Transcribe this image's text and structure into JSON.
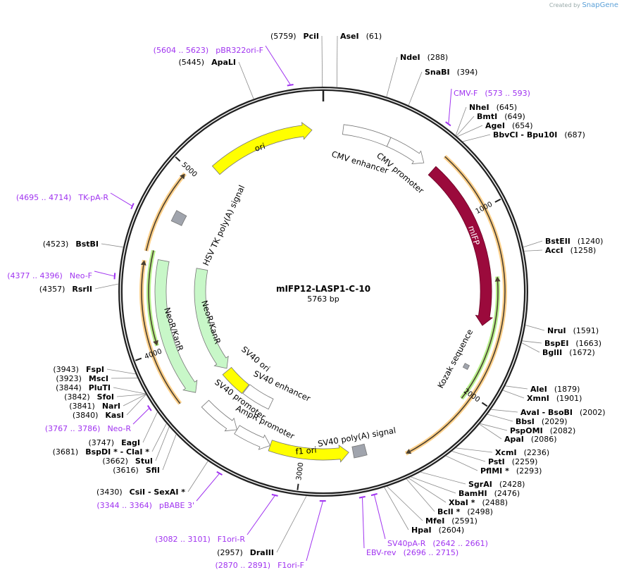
{
  "credit": {
    "prefix": "Created by",
    "brand": "SnapGene"
  },
  "plasmid": {
    "name": "mIFP12-LASP1-C-10",
    "length_label": "5763 bp",
    "length": 5763
  },
  "ticks": [
    "1000",
    "2000",
    "3000",
    "4000",
    "5000"
  ],
  "colors": {
    "backbone": "#222222",
    "primer": "#a033f0",
    "ori": "#ffff00",
    "promoter": "#ffffff",
    "mIFP": "#9b0a3c",
    "neo": "#c8f7c8",
    "signal": "#a0a4ad",
    "orange": "#ffd08a",
    "green": "#b6f08a"
  },
  "features": [
    {
      "label": "ori",
      "start": 5099,
      "end": 5699,
      "dir": 1,
      "type": "ori"
    },
    {
      "label": "CMV enhancer",
      "start": 112,
      "end": 379,
      "dir": 0,
      "type": "promoter"
    },
    {
      "label": "CMV promoter",
      "start": 379,
      "end": 608,
      "dir": 1,
      "type": "promoter"
    },
    {
      "label": "mIFP",
      "start": 672,
      "end": 1633,
      "dir": 1,
      "type": "mIFP"
    },
    {
      "label": "Kozak sequence",
      "start": 1870,
      "end": 1895,
      "dir": 0,
      "type": "signal"
    },
    {
      "label": "HSV TK poly(A) signal",
      "start": 4722,
      "end": 4786,
      "dir": 0,
      "type": "signal"
    },
    {
      "label": "NeoR/KanR",
      "start": 3709,
      "end": 4498,
      "dir": -1,
      "type": "neo"
    },
    {
      "label": "NeoR/KanR",
      "start": 3706,
      "end": 4490,
      "dir": -1,
      "type": "neo"
    },
    {
      "label": "SV40 ori",
      "start": 3500,
      "end": 3690,
      "dir": 0,
      "type": "ori"
    },
    {
      "label": "SV40 enhancer",
      "start": 3282,
      "end": 3495,
      "dir": 0,
      "type": "promoter"
    },
    {
      "label": "SV40 promoter",
      "start": 3394,
      "end": 3626,
      "dir": -1,
      "type": "promoter"
    },
    {
      "label": "AmpR promoter",
      "start": 3186,
      "end": 3394,
      "dir": -1,
      "type": "promoter"
    },
    {
      "label": "f1 ori",
      "start": 2737,
      "end": 3186,
      "dir": -1,
      "type": "ori"
    },
    {
      "label": "SV40 poly(A) signal",
      "start": 2641,
      "end": 2713,
      "dir": 0,
      "type": "signal"
    }
  ],
  "orfs": [
    {
      "start": 672,
      "end": 2449,
      "dir": 1,
      "type": "orange"
    },
    {
      "start": 1361,
      "end": 2043,
      "dir": -1,
      "type": "green"
    },
    {
      "start": 4530,
      "end": 4970,
      "dir": 1,
      "type": "orange"
    },
    {
      "start": 3714,
      "end": 4482,
      "dir": 1,
      "type": "orange"
    },
    {
      "start": 4034,
      "end": 4541,
      "dir": -1,
      "type": "green"
    }
  ],
  "enzymes": [
    {
      "name": "AseI",
      "pos": "(61)",
      "bp": 61,
      "side": "right"
    },
    {
      "name": "NdeI",
      "pos": "(288)",
      "bp": 288,
      "side": "right"
    },
    {
      "name": "SnaBI",
      "pos": "(394)",
      "bp": 394,
      "side": "right"
    },
    {
      "name": "NheI",
      "pos": "(645)",
      "bp": 645,
      "side": "right"
    },
    {
      "name": "BmtI",
      "pos": "(649)",
      "bp": 649,
      "side": "right"
    },
    {
      "name": "AgeI",
      "pos": "(654)",
      "bp": 654,
      "side": "right"
    },
    {
      "name": "BbvCI  - Bpu10I",
      "pos": "(687)",
      "bp": 687,
      "side": "right"
    },
    {
      "name": "BstEII",
      "pos": "(1240)",
      "bp": 1240,
      "side": "right"
    },
    {
      "name": "AccI",
      "pos": "(1258)",
      "bp": 1258,
      "side": "right"
    },
    {
      "name": "NruI",
      "pos": "(1591)",
      "bp": 1591,
      "side": "right"
    },
    {
      "name": "BspEI",
      "pos": "(1663)",
      "bp": 1663,
      "side": "right"
    },
    {
      "name": "BglII",
      "pos": "(1672)",
      "bp": 1672,
      "side": "right"
    },
    {
      "name": "AleI",
      "pos": "(1879)",
      "bp": 1879,
      "side": "right"
    },
    {
      "name": "XmnI",
      "pos": "(1901)",
      "bp": 1901,
      "side": "right"
    },
    {
      "name": "AvaI  - BsoBI",
      "pos": "(2002)",
      "bp": 2002,
      "side": "right"
    },
    {
      "name": "BbsI",
      "pos": "(2029)",
      "bp": 2029,
      "side": "right"
    },
    {
      "name": "PspOMI",
      "pos": "(2082)",
      "bp": 2082,
      "side": "right"
    },
    {
      "name": "ApaI",
      "pos": "(2086)",
      "bp": 2086,
      "side": "right"
    },
    {
      "name": "XcmI",
      "pos": "(2236)",
      "bp": 2236,
      "side": "right"
    },
    {
      "name": "PstI",
      "pos": "(2259)",
      "bp": 2259,
      "side": "right"
    },
    {
      "name": "PflMI *",
      "pos": "(2293)",
      "bp": 2293,
      "side": "right"
    },
    {
      "name": "SgrAI",
      "pos": "(2428)",
      "bp": 2428,
      "side": "right"
    },
    {
      "name": "BamHI",
      "pos": "(2476)",
      "bp": 2476,
      "side": "right"
    },
    {
      "name": "XbaI *",
      "pos": "(2488)",
      "bp": 2488,
      "side": "right"
    },
    {
      "name": "BclI *",
      "pos": "(2498)",
      "bp": 2498,
      "side": "right"
    },
    {
      "name": "MfeI",
      "pos": "(2591)",
      "bp": 2591,
      "side": "right"
    },
    {
      "name": "HpaI",
      "pos": "(2604)",
      "bp": 2604,
      "side": "right"
    },
    {
      "name": "PciI",
      "pos": "(5759)",
      "bp": 5759,
      "side": "left"
    },
    {
      "name": "ApaLI",
      "pos": "(5445)",
      "bp": 5445,
      "side": "left"
    },
    {
      "name": "BstBI",
      "pos": "(4523)",
      "bp": 4523,
      "side": "left"
    },
    {
      "name": "RsrII",
      "pos": "(4357)",
      "bp": 4357,
      "side": "left"
    },
    {
      "name": "FspI",
      "pos": "(3943)",
      "bp": 3943,
      "side": "left"
    },
    {
      "name": "MscI",
      "pos": "(3923)",
      "bp": 3923,
      "side": "left"
    },
    {
      "name": "PluTI",
      "pos": "(3844)",
      "bp": 3844,
      "side": "left"
    },
    {
      "name": "SfoI",
      "pos": "(3842)",
      "bp": 3842,
      "side": "left"
    },
    {
      "name": "NarI",
      "pos": "(3841)",
      "bp": 3841,
      "side": "left"
    },
    {
      "name": "KasI",
      "pos": "(3840)",
      "bp": 3840,
      "side": "left"
    },
    {
      "name": "EagI",
      "pos": "(3747)",
      "bp": 3747,
      "side": "left"
    },
    {
      "name": "BspDI *  - ClaI *",
      "pos": "(3681)",
      "bp": 3681,
      "side": "left"
    },
    {
      "name": "StuI",
      "pos": "(3662)",
      "bp": 3662,
      "side": "left"
    },
    {
      "name": "SfiI",
      "pos": "(3616)",
      "bp": 3616,
      "side": "left"
    },
    {
      "name": "CsiI   - SexAI *",
      "pos": "(3430)",
      "bp": 3430,
      "side": "left"
    },
    {
      "name": "DraIII",
      "pos": "(2957)",
      "bp": 2957,
      "side": "left"
    }
  ],
  "primers": [
    {
      "name": "pBR322ori-F",
      "range": "(5604 .. 5623)",
      "start": 5604,
      "end": 5623,
      "side": "left"
    },
    {
      "name": "CMV-F",
      "range": "(573 .. 593)",
      "start": 573,
      "end": 593,
      "side": "right"
    },
    {
      "name": "TK-pA-R",
      "range": "(4695 .. 4714)",
      "start": 4695,
      "end": 4714,
      "side": "left"
    },
    {
      "name": "Neo-F",
      "range": "(4377 .. 4396)",
      "start": 4377,
      "end": 4396,
      "side": "left"
    },
    {
      "name": "Neo-R",
      "range": "(3767 .. 3786)",
      "start": 3767,
      "end": 3786,
      "side": "left"
    },
    {
      "name": "pBABE 3'",
      "range": "(3344 .. 3364)",
      "start": 3344,
      "end": 3364,
      "side": "left"
    },
    {
      "name": "F1ori-R",
      "range": "(3082 .. 3101)",
      "start": 3082,
      "end": 3101,
      "side": "left"
    },
    {
      "name": "F1ori-F",
      "range": "(2870 .. 2891)",
      "start": 2870,
      "end": 2891,
      "side": "left"
    },
    {
      "name": "SV40pA-R",
      "range": "(2642 .. 2661)",
      "start": 2642,
      "end": 2661,
      "side": "right"
    },
    {
      "name": "EBV-rev",
      "range": "(2696 .. 2715)",
      "start": 2696,
      "end": 2715,
      "side": "right"
    }
  ]
}
